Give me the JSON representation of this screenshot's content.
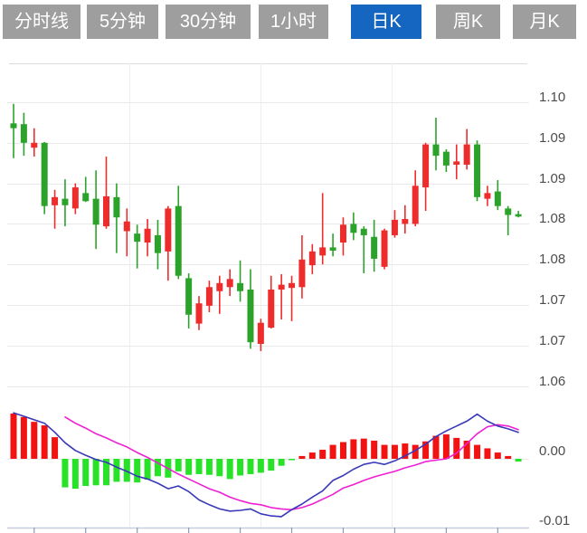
{
  "toolbar": {
    "buttons": [
      {
        "key": "minute-line",
        "label": "分时线",
        "active": false
      },
      {
        "key": "5min",
        "label": "5分钟",
        "active": false
      },
      {
        "key": "30min",
        "label": "30分钟",
        "active": false
      },
      {
        "key": "1hour",
        "label": "1小时",
        "active": false
      },
      {
        "key": "daily",
        "label": "日K",
        "active": true
      },
      {
        "key": "weekly",
        "label": "周K",
        "active": false
      },
      {
        "key": "monthly",
        "label": "月K",
        "active": false
      }
    ],
    "colors": {
      "active_bg": "#1566c0",
      "inactive_bg": "#9e9e9e",
      "text": "#ffffff"
    }
  },
  "chart_data": {
    "type": "candlestick+macd",
    "price_axis": {
      "tick_labels": [
        "1.10",
        "1.09",
        "1.09",
        "1.08",
        "1.08",
        "1.07",
        "1.07",
        "1.06"
      ],
      "tick_values": [
        1.1,
        1.095,
        1.09,
        1.085,
        1.08,
        1.075,
        1.07,
        1.065
      ],
      "visible_range": [
        1.063,
        1.105
      ],
      "grid": true,
      "label_side": "right"
    },
    "macd_axis": {
      "tick_labels": [
        "0.00",
        "-0.01"
      ],
      "tick_values": [
        0,
        -0.01
      ]
    },
    "candle_format": [
      "color(r=red/up, g=green/down)",
      "high",
      "low",
      "body_top",
      "body_bottom"
    ],
    "candles": [
      [
        "g",
        1.0998,
        1.0931,
        1.0974,
        1.0968
      ],
      [
        "g",
        1.0987,
        1.0934,
        1.0973,
        1.095
      ],
      [
        "r",
        1.0968,
        1.0933,
        1.095,
        1.0944
      ],
      [
        "g",
        1.0951,
        1.0862,
        1.095,
        1.0872
      ],
      [
        "r",
        1.0892,
        1.0844,
        1.0883,
        1.0873
      ],
      [
        "g",
        1.0905,
        1.0847,
        1.0881,
        1.0873
      ],
      [
        "r",
        1.09,
        1.0862,
        1.0895,
        1.0869
      ],
      [
        "g",
        1.0908,
        1.0877,
        1.0888,
        1.0878
      ],
      [
        "g",
        1.0916,
        1.0819,
        1.0881,
        1.0849
      ],
      [
        "r",
        1.0933,
        1.0844,
        1.0884,
        1.0847
      ],
      [
        "g",
        1.09,
        1.0814,
        1.0883,
        1.0858
      ],
      [
        "r",
        1.0869,
        1.081,
        1.0853,
        1.0841
      ],
      [
        "g",
        1.0849,
        1.0795,
        1.0838,
        1.0828
      ],
      [
        "r",
        1.0856,
        1.081,
        1.0844,
        1.0827
      ],
      [
        "g",
        1.0855,
        1.0794,
        1.0836,
        1.0814
      ],
      [
        "r",
        1.0872,
        1.078,
        1.0869,
        1.0816
      ],
      [
        "g",
        1.0897,
        1.0782,
        1.0872,
        1.0786
      ],
      [
        "g",
        1.0789,
        1.0721,
        1.0783,
        1.0738
      ],
      [
        "r",
        1.0761,
        1.0719,
        1.0752,
        1.0727
      ],
      [
        "r",
        1.078,
        1.0741,
        1.0772,
        1.0749
      ],
      [
        "r",
        1.0786,
        1.0739,
        1.0777,
        1.0767
      ],
      [
        "r",
        1.0794,
        1.0761,
        1.0782,
        1.0772
      ],
      [
        "g",
        1.0805,
        1.0754,
        1.0777,
        1.0767
      ],
      [
        "g",
        1.0794,
        1.0696,
        1.0769,
        1.0704
      ],
      [
        "r",
        1.0733,
        1.0693,
        1.0728,
        1.0702
      ],
      [
        "r",
        1.0786,
        1.0721,
        1.0769,
        1.0722
      ],
      [
        "r",
        1.0788,
        1.0732,
        1.0775,
        1.0769
      ],
      [
        "r",
        1.0786,
        1.073,
        1.0777,
        1.0771
      ],
      [
        "r",
        1.0836,
        1.0758,
        1.0806,
        1.0772
      ],
      [
        "r",
        1.0825,
        1.0788,
        1.0816,
        1.0799
      ],
      [
        "r",
        1.0888,
        1.08,
        1.0821,
        1.0811
      ],
      [
        "g",
        1.0838,
        1.081,
        1.0821,
        1.0817
      ],
      [
        "r",
        1.0858,
        1.0811,
        1.0849,
        1.0827
      ],
      [
        "g",
        1.0864,
        1.083,
        1.085,
        1.0839
      ],
      [
        "g",
        1.0847,
        1.0789,
        1.0844,
        1.0836
      ],
      [
        "g",
        1.0855,
        1.0791,
        1.0834,
        1.0807
      ],
      [
        "r",
        1.0844,
        1.0794,
        1.0842,
        1.0797
      ],
      [
        "r",
        1.0867,
        1.0833,
        1.0855,
        1.0836
      ],
      [
        "r",
        1.0873,
        1.0838,
        1.0856,
        1.085
      ],
      [
        "r",
        1.0916,
        1.0847,
        1.0897,
        1.085
      ],
      [
        "r",
        1.095,
        1.0866,
        1.0948,
        1.0895
      ],
      [
        "g",
        1.0981,
        1.0916,
        1.0948,
        1.0934
      ],
      [
        "g",
        1.0942,
        1.0914,
        1.0939,
        1.0922
      ],
      [
        "r",
        1.0948,
        1.0905,
        1.0927,
        1.0923
      ],
      [
        "r",
        1.0967,
        1.0917,
        1.0948,
        1.0923
      ],
      [
        "g",
        1.0953,
        1.0878,
        1.0948,
        1.0883
      ],
      [
        "r",
        1.0897,
        1.0872,
        1.0888,
        1.0881
      ],
      [
        "g",
        1.0904,
        1.0867,
        1.089,
        1.0872
      ],
      [
        "g",
        1.0872,
        1.0836,
        1.0869,
        1.0861
      ],
      [
        "g",
        1.0866,
        1.0858,
        1.0862,
        1.0859
      ]
    ],
    "macd": {
      "hist": [
        0.0065,
        0.006,
        0.0053,
        0.0048,
        0.0031,
        -0.0041,
        -0.0043,
        -0.0039,
        -0.0038,
        -0.0038,
        -0.0033,
        -0.0033,
        -0.0034,
        -0.003,
        -0.0025,
        -0.0027,
        -0.0018,
        -0.0023,
        -0.0022,
        -0.0023,
        -0.0025,
        -0.0029,
        -0.0024,
        -0.0022,
        -0.002,
        -0.0017,
        -0.001,
        -0.0002,
        0.0004,
        0.0009,
        0.0013,
        0.002,
        0.0024,
        0.0028,
        0.0029,
        0.0026,
        0.002,
        0.002,
        0.0022,
        0.002,
        0.0025,
        0.0033,
        0.0035,
        0.003,
        0.0026,
        0.002,
        0.0015,
        0.0009,
        0.0004,
        -0.0004
      ],
      "dif": [
        0.0066,
        0.0061,
        0.0056,
        0.0051,
        0.0038,
        0.0023,
        0.0012,
        0.0005,
        -0.0001,
        -0.0005,
        -0.0012,
        -0.0018,
        -0.0025,
        -0.0029,
        -0.0035,
        -0.0043,
        -0.0039,
        -0.0047,
        -0.0059,
        -0.0066,
        -0.0072,
        -0.0075,
        -0.0074,
        -0.0072,
        -0.0079,
        -0.0082,
        -0.0083,
        -0.0073,
        -0.0065,
        -0.0055,
        -0.0046,
        -0.0031,
        -0.0024,
        -0.0015,
        -0.0008,
        -0.0005,
        -0.0008,
        -0.0003,
        0.0004,
        0.0012,
        0.0021,
        0.0032,
        0.004,
        0.0047,
        0.0054,
        0.0064,
        0.0054,
        0.0047,
        0.0043,
        0.0038
      ],
      "dea": [
        null,
        null,
        null,
        null,
        null,
        0.006,
        0.0051,
        0.0044,
        0.0036,
        0.003,
        0.0023,
        0.0017,
        0.0009,
        0.0002,
        -0.0006,
        -0.0014,
        -0.0022,
        -0.0029,
        -0.0036,
        -0.0043,
        -0.0048,
        -0.0055,
        -0.006,
        -0.0064,
        -0.0066,
        -0.007,
        -0.0072,
        -0.0073,
        -0.007,
        -0.0065,
        -0.0058,
        -0.0051,
        -0.0042,
        -0.0037,
        -0.0031,
        -0.0026,
        -0.0022,
        -0.0018,
        -0.0013,
        -0.0009,
        -0.0004,
        -0.0002,
        0.0,
        0.0008,
        0.0022,
        0.0036,
        0.0046,
        0.0049,
        0.0047,
        0.0042
      ]
    },
    "colors": {
      "candle_red": "#ee2c2c",
      "candle_green": "#2ba32b",
      "hist_red": "#f21212",
      "hist_green": "#28e228",
      "dif_line": "#3939b8",
      "dea_line": "#ef1fd4",
      "grid": "#e9e9ed",
      "vgrid": "#eeeef2",
      "separator": "#dcdcdc",
      "axis_bottom": "#c8cede",
      "tick": "#8a9ab5",
      "axis_text": "#4c4c4c"
    }
  }
}
